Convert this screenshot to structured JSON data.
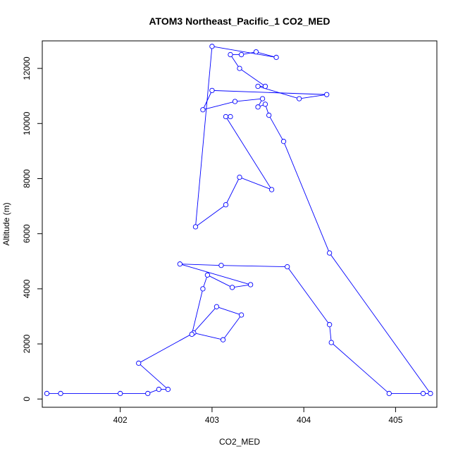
{
  "chart_data": {
    "type": "line",
    "title": "ATOM3 Northeast_Pacific_1 CO2_MED",
    "xlabel": "CO2_MED",
    "ylabel": "Altitude (m)",
    "xlim": [
      401.15,
      405.45
    ],
    "ylim": [
      -300,
      13000
    ],
    "xticks": [
      402,
      403,
      404,
      405
    ],
    "yticks": [
      0,
      2000,
      4000,
      6000,
      8000,
      10000,
      12000
    ],
    "grid": false,
    "color": "#0000ff",
    "series": [
      {
        "points": [
          [
            401.2,
            200
          ],
          [
            401.35,
            200
          ],
          [
            402.0,
            200
          ],
          [
            402.3,
            200
          ],
          [
            402.42,
            350
          ],
          [
            402.52,
            350
          ],
          [
            402.2,
            1300
          ],
          [
            402.8,
            2400
          ],
          [
            403.12,
            2150
          ],
          [
            403.32,
            3050
          ],
          [
            403.05,
            3350
          ],
          [
            402.78,
            2350
          ],
          [
            402.9,
            4000
          ],
          [
            402.95,
            4500
          ],
          [
            403.22,
            4050
          ],
          [
            403.42,
            4150
          ],
          [
            402.65,
            4900
          ],
          [
            403.1,
            4850
          ],
          [
            403.82,
            4800
          ],
          [
            404.28,
            2700
          ],
          [
            404.3,
            2050
          ],
          [
            404.93,
            200
          ],
          [
            405.3,
            200
          ],
          [
            405.38,
            200
          ],
          [
            404.28,
            5300
          ],
          [
            403.78,
            9350
          ],
          [
            403.62,
            10300
          ],
          [
            403.58,
            10700
          ],
          [
            403.5,
            10600
          ],
          [
            403.55,
            10900
          ],
          [
            403.25,
            10800
          ],
          [
            402.9,
            10500
          ],
          [
            403.0,
            11200
          ],
          [
            404.25,
            11050
          ],
          [
            403.95,
            10900
          ],
          [
            403.5,
            11350
          ],
          [
            403.58,
            11350
          ],
          [
            403.3,
            12000
          ],
          [
            403.2,
            12500
          ],
          [
            403.32,
            12500
          ],
          [
            403.48,
            12600
          ],
          [
            403.7,
            12400
          ],
          [
            403.0,
            12800
          ],
          [
            402.82,
            6250
          ],
          [
            403.15,
            7050
          ],
          [
            403.3,
            8050
          ],
          [
            403.65,
            7600
          ],
          [
            403.15,
            10250
          ],
          [
            403.2,
            10250
          ]
        ]
      }
    ]
  }
}
